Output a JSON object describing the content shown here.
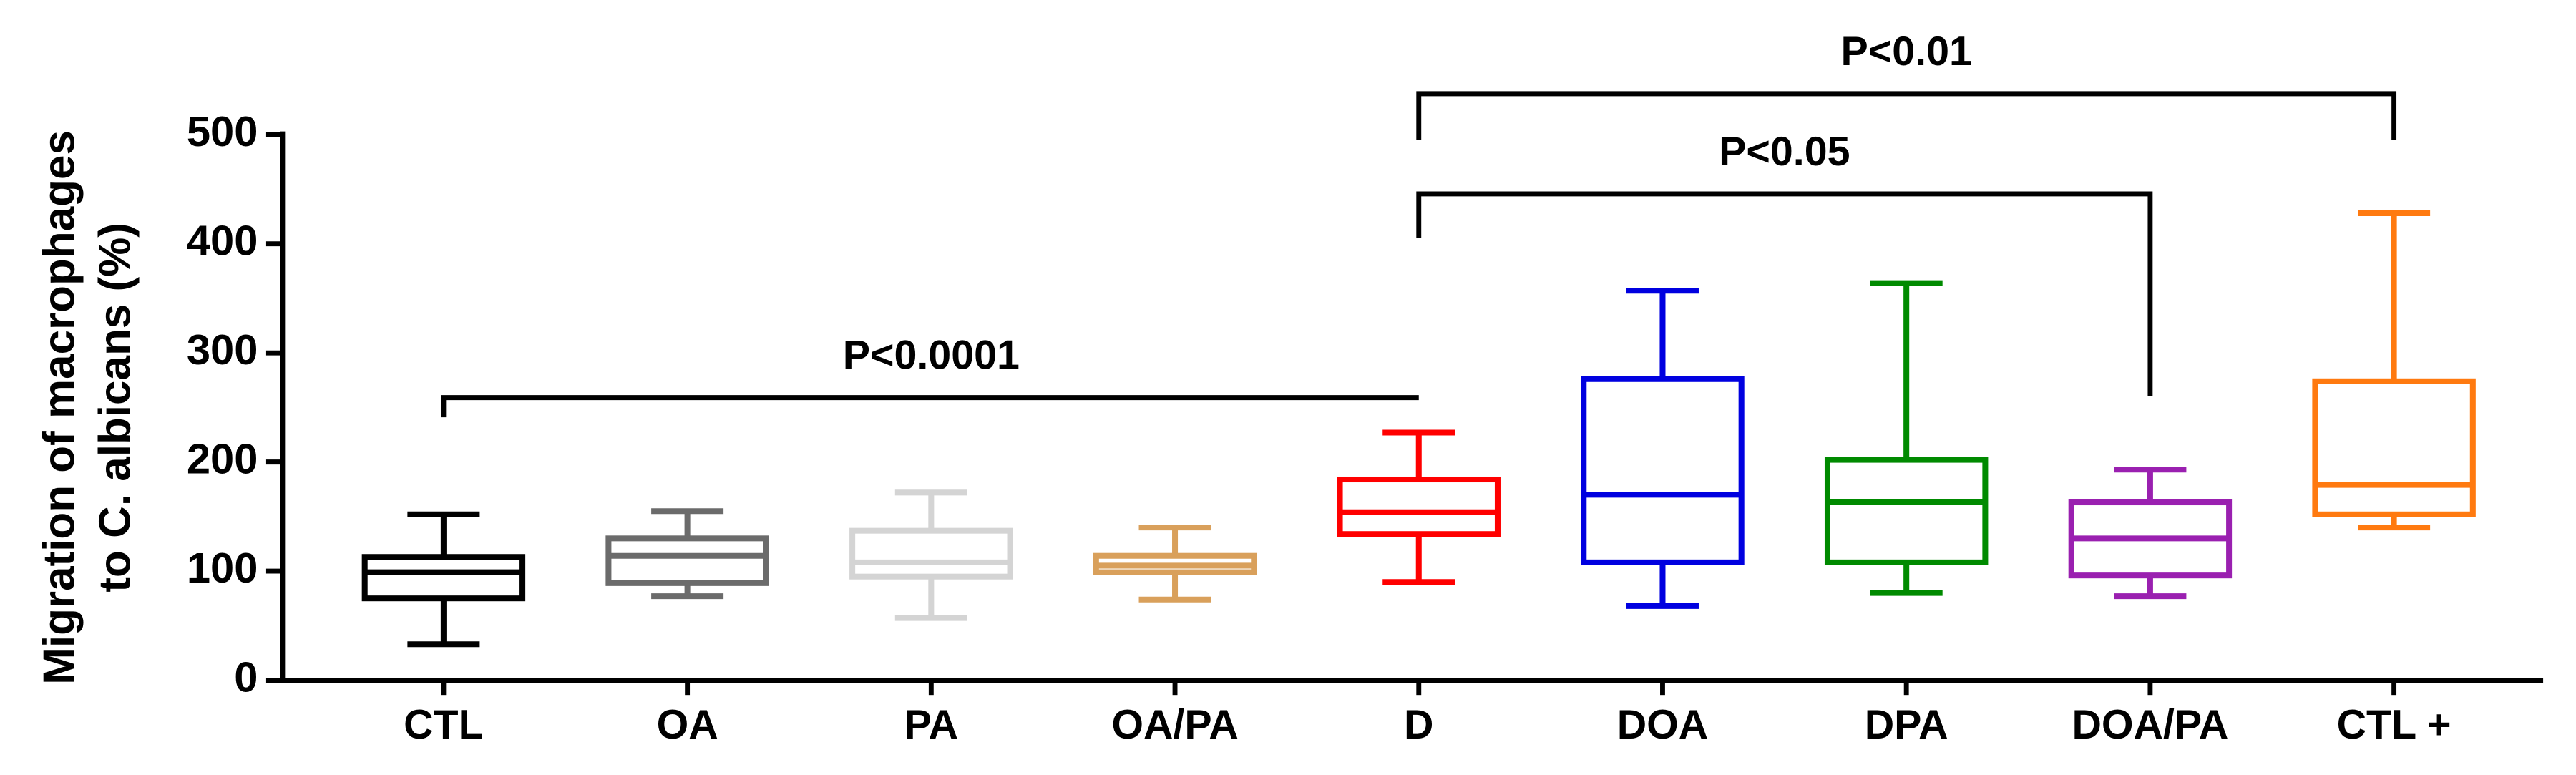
{
  "chart_data": {
    "type": "box",
    "ylabel": [
      "Migration of macrophages",
      "to C. albicans (%)"
    ],
    "categories": [
      "CTL",
      "OA",
      "PA",
      "OA/PA",
      "D",
      "DOA",
      "DPA",
      "DOA/PA",
      "CTL +"
    ],
    "colors": [
      "#000000",
      "#6b6b6b",
      "#d4d4d4",
      "#d9a05b",
      "#ff0000",
      "#0000e0",
      "#008a00",
      "#9a20b0",
      "#ff7a10"
    ],
    "max": [
      152,
      155,
      172,
      140,
      227,
      357,
      364,
      193,
      428
    ],
    "q3": [
      113,
      130,
      137,
      114,
      184,
      276,
      202,
      163,
      274
    ],
    "median": [
      99,
      114,
      108,
      105,
      154,
      170,
      163,
      130,
      179
    ],
    "q1": [
      75,
      89,
      95,
      99,
      134,
      108,
      108,
      96,
      152
    ],
    "min": [
      33,
      77,
      57,
      74,
      90,
      68,
      80,
      77,
      140
    ],
    "ylim": [
      0,
      500
    ],
    "yticks": [
      0,
      100,
      200,
      300,
      400,
      500
    ],
    "annotations": [
      {
        "text": "P<0.0001",
        "between": [
          "CTL",
          "D"
        ]
      },
      {
        "text": "P<0.05",
        "between": [
          "D",
          "DOA/PA"
        ]
      },
      {
        "text": "P<0.01",
        "between": [
          "D",
          "CTL +"
        ]
      }
    ]
  }
}
